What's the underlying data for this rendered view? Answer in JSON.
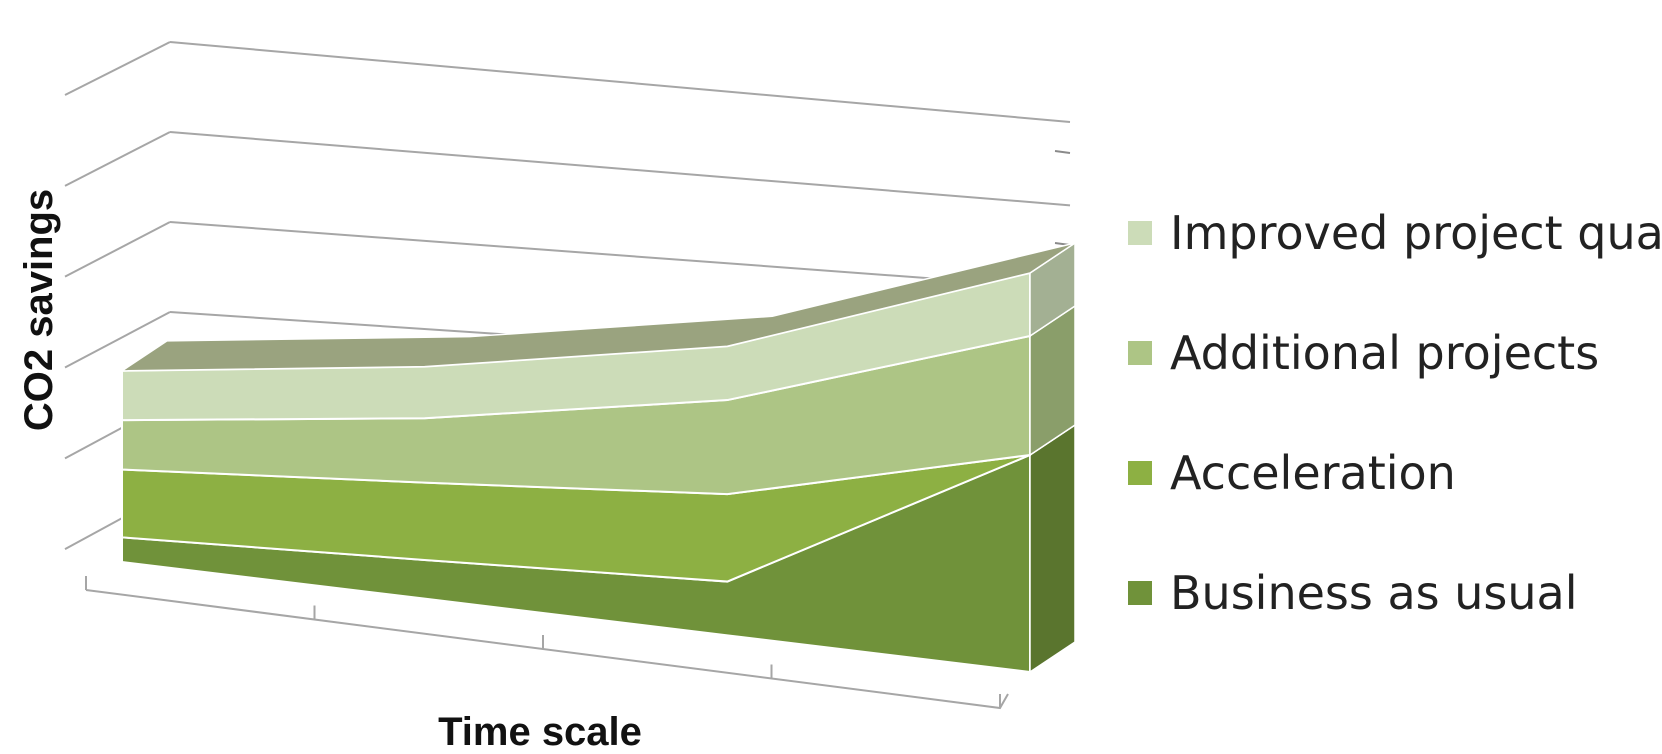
{
  "chart_data": {
    "type": "area",
    "subtype": "3d-stacked-area",
    "title": "",
    "xlabel": "Time scale",
    "ylabel": "CO2  savings",
    "x": [
      1,
      2,
      3,
      4
    ],
    "ylim": [
      0,
      6
    ],
    "y_ticks_shown": false,
    "x_ticks_shown": false,
    "grid": true,
    "legend_position": "right",
    "series": [
      {
        "name": "Business as usual",
        "values": [
          0.4,
          0.6,
          0.8,
          3.1
        ],
        "color": "#70923a"
      },
      {
        "name": "Acceleration",
        "values": [
          1.1,
          1.2,
          1.3,
          0.0
        ],
        "color": "#8db043"
      },
      {
        "name": "Additional projects",
        "values": [
          0.8,
          1.0,
          1.4,
          1.7
        ],
        "color": "#adc585"
      },
      {
        "name": "Improved project quality",
        "values": [
          0.8,
          0.8,
          0.8,
          0.9
        ],
        "color": "#ccdcb8"
      }
    ]
  }
}
